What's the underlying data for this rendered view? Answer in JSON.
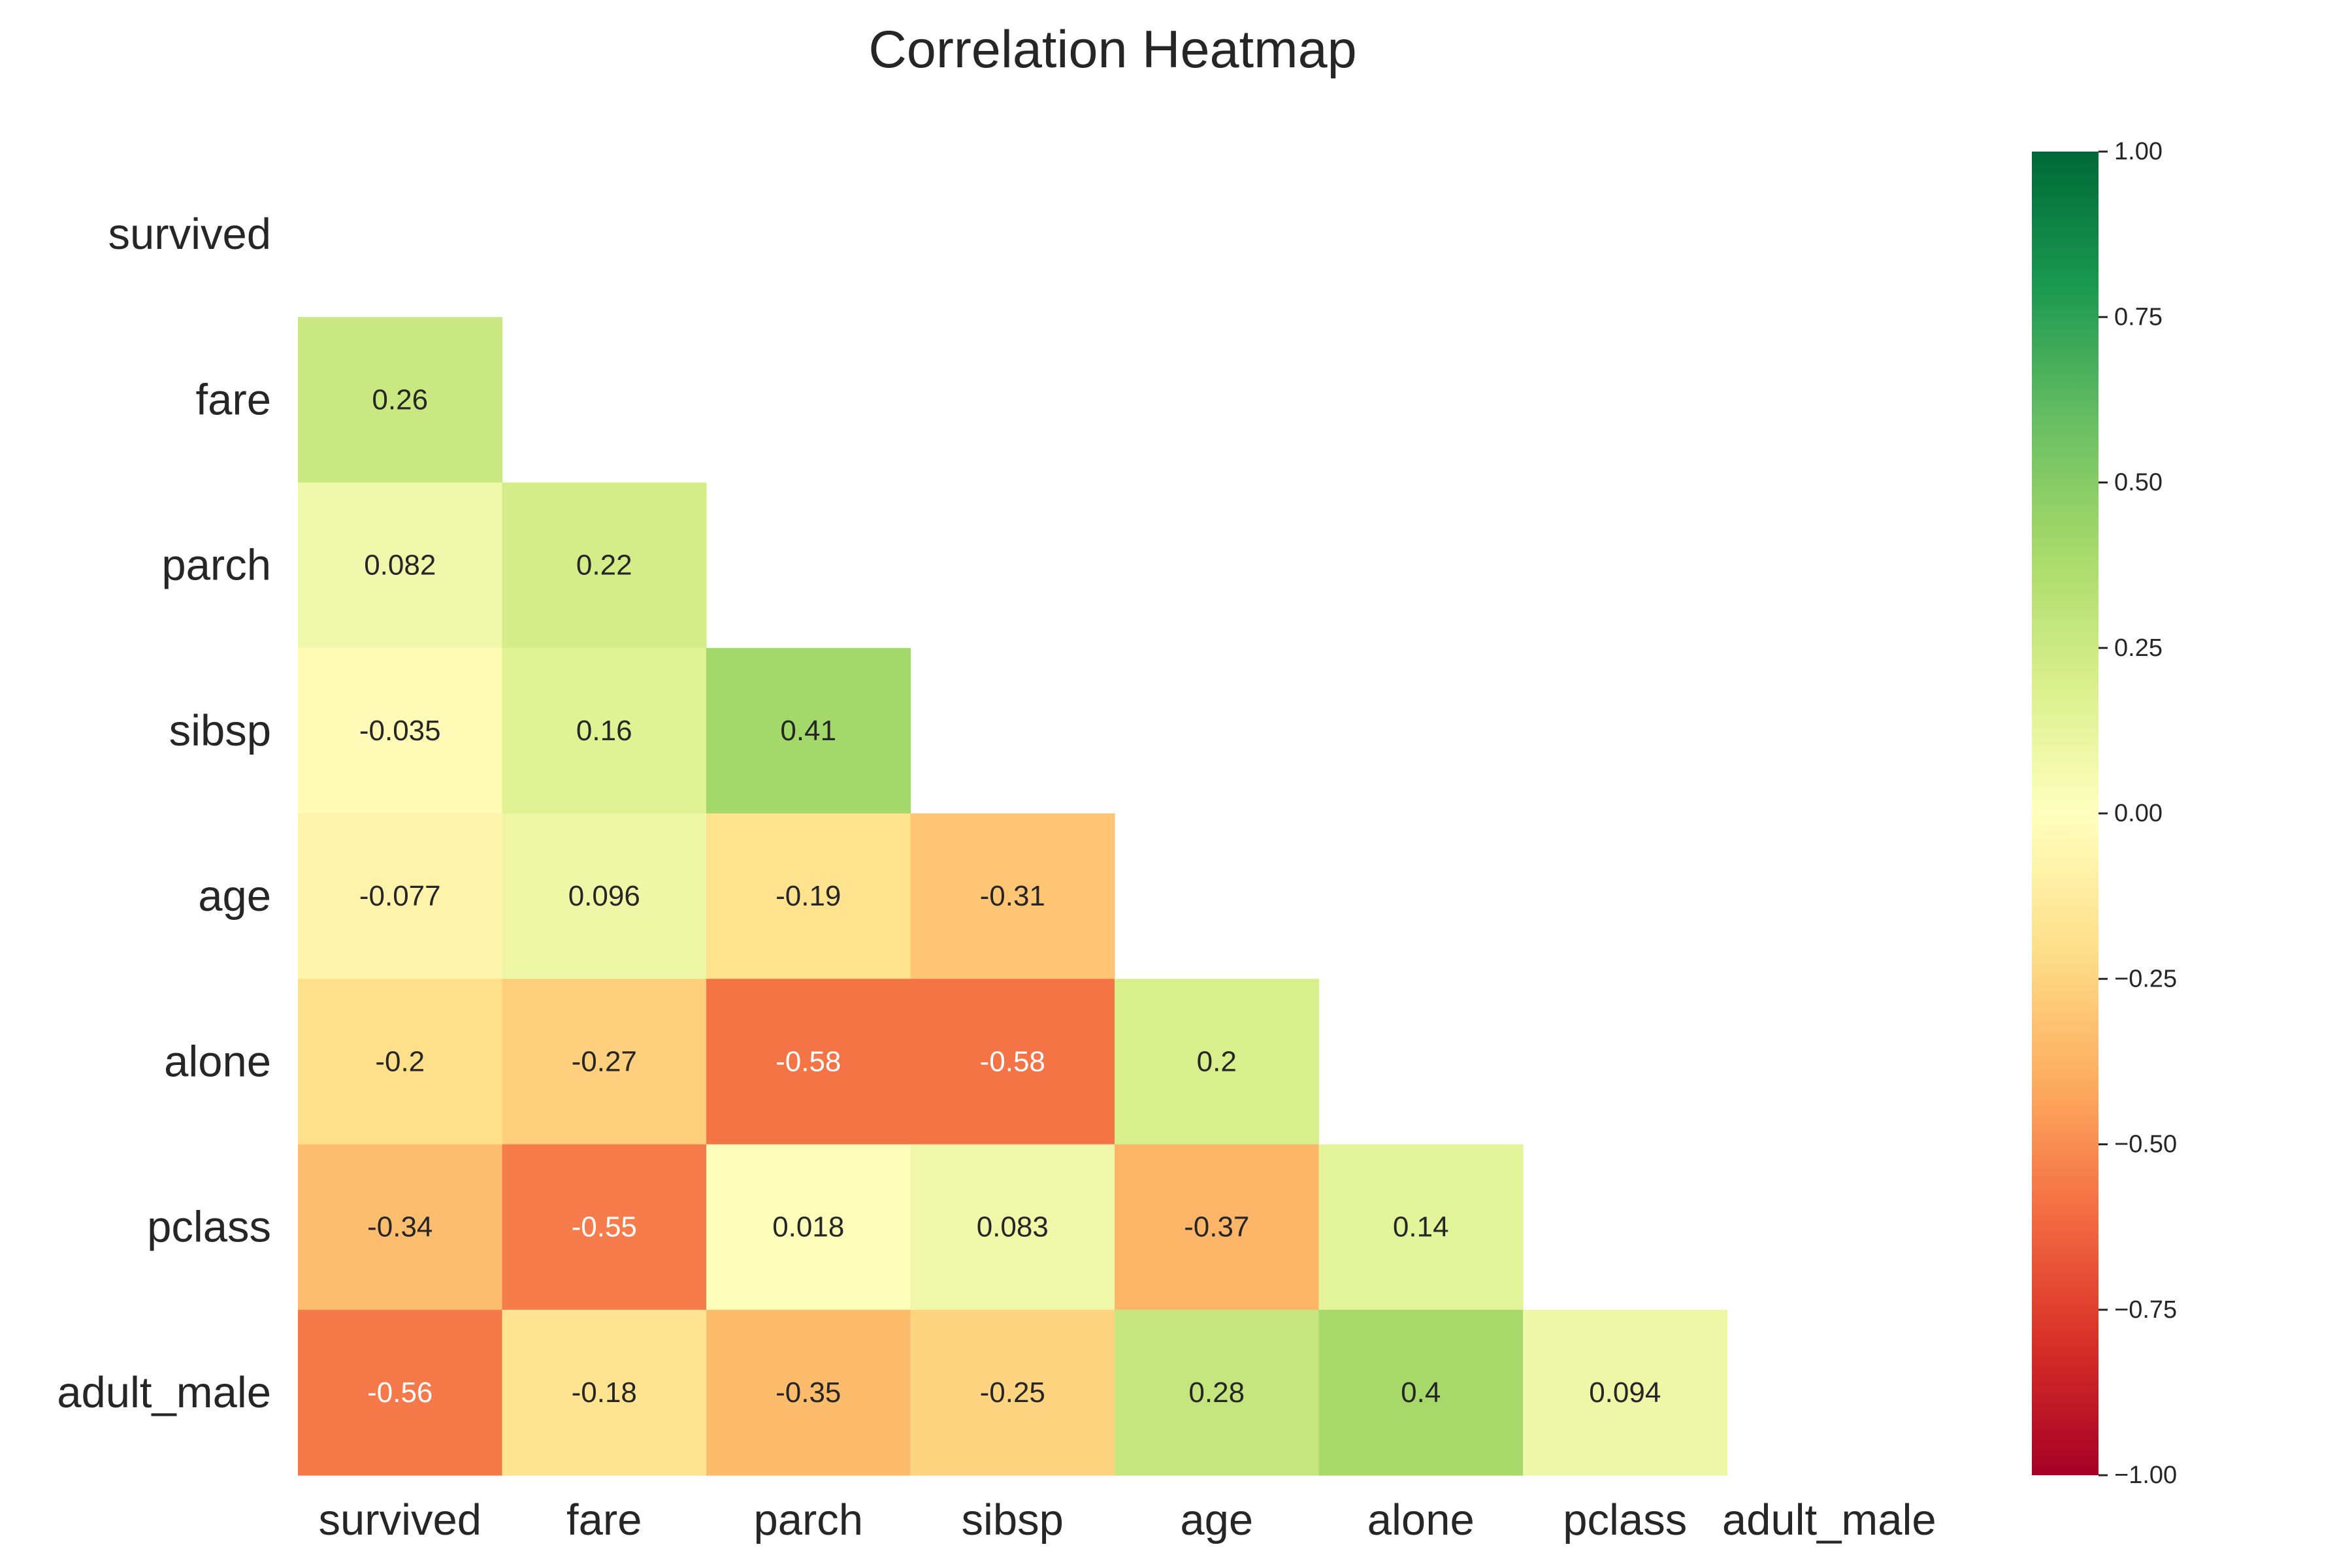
{
  "chart_data": {
    "type": "heatmap",
    "title": "Correlation Heatmap",
    "xlabel": "",
    "ylabel": "",
    "variables": [
      "survived",
      "fare",
      "parch",
      "sibsp",
      "age",
      "alone",
      "pclass",
      "adult_male"
    ],
    "mask": "upper-triangle including diagonal",
    "cells": [
      {
        "row": "fare",
        "col": "survived",
        "value": 0.26,
        "label": "0.26"
      },
      {
        "row": "parch",
        "col": "survived",
        "value": 0.082,
        "label": "0.082"
      },
      {
        "row": "parch",
        "col": "fare",
        "value": 0.22,
        "label": "0.22"
      },
      {
        "row": "sibsp",
        "col": "survived",
        "value": -0.035,
        "label": "-0.035"
      },
      {
        "row": "sibsp",
        "col": "fare",
        "value": 0.16,
        "label": "0.16"
      },
      {
        "row": "sibsp",
        "col": "parch",
        "value": 0.41,
        "label": "0.41"
      },
      {
        "row": "age",
        "col": "survived",
        "value": -0.077,
        "label": "-0.077"
      },
      {
        "row": "age",
        "col": "fare",
        "value": 0.096,
        "label": "0.096"
      },
      {
        "row": "age",
        "col": "parch",
        "value": -0.19,
        "label": "-0.19"
      },
      {
        "row": "age",
        "col": "sibsp",
        "value": -0.31,
        "label": "-0.31"
      },
      {
        "row": "alone",
        "col": "survived",
        "value": -0.2,
        "label": "-0.2"
      },
      {
        "row": "alone",
        "col": "fare",
        "value": -0.27,
        "label": "-0.27"
      },
      {
        "row": "alone",
        "col": "parch",
        "value": -0.58,
        "label": "-0.58"
      },
      {
        "row": "alone",
        "col": "sibsp",
        "value": -0.58,
        "label": "-0.58"
      },
      {
        "row": "alone",
        "col": "age",
        "value": 0.2,
        "label": "0.2"
      },
      {
        "row": "pclass",
        "col": "survived",
        "value": -0.34,
        "label": "-0.34"
      },
      {
        "row": "pclass",
        "col": "fare",
        "value": -0.55,
        "label": "-0.55"
      },
      {
        "row": "pclass",
        "col": "parch",
        "value": 0.018,
        "label": "0.018"
      },
      {
        "row": "pclass",
        "col": "sibsp",
        "value": 0.083,
        "label": "0.083"
      },
      {
        "row": "pclass",
        "col": "age",
        "value": -0.37,
        "label": "-0.37"
      },
      {
        "row": "pclass",
        "col": "alone",
        "value": 0.14,
        "label": "0.14"
      },
      {
        "row": "adult_male",
        "col": "survived",
        "value": -0.56,
        "label": "-0.56"
      },
      {
        "row": "adult_male",
        "col": "fare",
        "value": -0.18,
        "label": "-0.18"
      },
      {
        "row": "adult_male",
        "col": "parch",
        "value": -0.35,
        "label": "-0.35"
      },
      {
        "row": "adult_male",
        "col": "sibsp",
        "value": -0.25,
        "label": "-0.25"
      },
      {
        "row": "adult_male",
        "col": "age",
        "value": 0.28,
        "label": "0.28"
      },
      {
        "row": "adult_male",
        "col": "alone",
        "value": 0.4,
        "label": "0.4"
      },
      {
        "row": "adult_male",
        "col": "pclass",
        "value": 0.094,
        "label": "0.094"
      }
    ],
    "colorscale": {
      "name": "RdYlGn",
      "vmin": -1.0,
      "vmax": 1.0,
      "stops": [
        "#a50026",
        "#d73027",
        "#f46d43",
        "#fdae61",
        "#fee08b",
        "#ffffbf",
        "#d9ef8b",
        "#a6d96a",
        "#66bd63",
        "#1a9850",
        "#006837"
      ]
    },
    "colorbar": {
      "ticks": [
        1.0,
        0.75,
        0.5,
        0.25,
        0.0,
        -0.25,
        -0.5,
        -0.75,
        -1.0
      ],
      "tick_labels": [
        "1.00",
        "0.75",
        "0.50",
        "0.25",
        "0.00",
        "−0.25",
        "−0.50",
        "−0.75",
        "−1.00"
      ],
      "placement": "right"
    },
    "grid": false
  }
}
